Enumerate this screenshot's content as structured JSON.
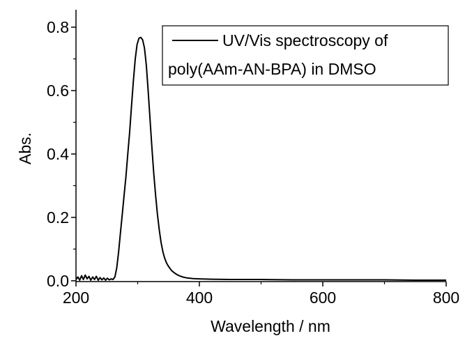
{
  "chart_data": {
    "type": "line",
    "xlabel": "Wavelength / nm",
    "ylabel": "Abs.",
    "xlim": [
      200,
      800
    ],
    "ylim": [
      -0.0025,
      0.855
    ],
    "x_ticks": [
      200,
      400,
      600,
      800
    ],
    "x_tick_labels": [
      "200",
      "400",
      "600",
      "800"
    ],
    "y_ticks": [
      0.0,
      0.2,
      0.4,
      0.6,
      0.8
    ],
    "y_tick_labels": [
      "0.0",
      "0.2",
      "0.4",
      "0.6",
      "0.8"
    ],
    "grid": false,
    "legend_position": "top-right",
    "series": [
      {
        "name": "UV/Vis spectroscopy of poly(AAm-AN-BPA) in DMSO",
        "color": "#000000",
        "x": [
          200,
          203,
          206,
          209,
          212,
          215,
          218,
          221,
          224,
          227,
          230,
          233,
          236,
          239,
          242,
          245,
          248,
          251,
          254,
          257,
          260,
          263,
          266,
          269,
          272,
          275,
          278,
          281,
          284,
          287,
          290,
          293,
          296,
          299,
          302,
          305,
          308,
          311,
          314,
          317,
          320,
          323,
          326,
          329,
          332,
          335,
          338,
          341,
          344,
          347,
          350,
          355,
          360,
          365,
          370,
          375,
          380,
          390,
          400,
          420,
          450,
          500,
          550,
          600,
          650,
          700,
          750,
          800
        ],
        "y": [
          0.004,
          0.012,
          0.002,
          0.016,
          0.004,
          0.018,
          0.006,
          0.014,
          0.002,
          0.012,
          0.004,
          0.014,
          0.002,
          0.01,
          0.003,
          0.009,
          0.002,
          0.008,
          0.003,
          0.006,
          0.004,
          0.012,
          0.04,
          0.09,
          0.15,
          0.21,
          0.27,
          0.33,
          0.4,
          0.47,
          0.55,
          0.63,
          0.7,
          0.745,
          0.765,
          0.768,
          0.76,
          0.735,
          0.68,
          0.6,
          0.51,
          0.42,
          0.34,
          0.27,
          0.21,
          0.16,
          0.12,
          0.09,
          0.07,
          0.055,
          0.045,
          0.032,
          0.024,
          0.018,
          0.014,
          0.011,
          0.009,
          0.007,
          0.006,
          0.005,
          0.004,
          0.004,
          0.003,
          0.003,
          0.003,
          0.003,
          0.002,
          0.002
        ]
      }
    ]
  }
}
